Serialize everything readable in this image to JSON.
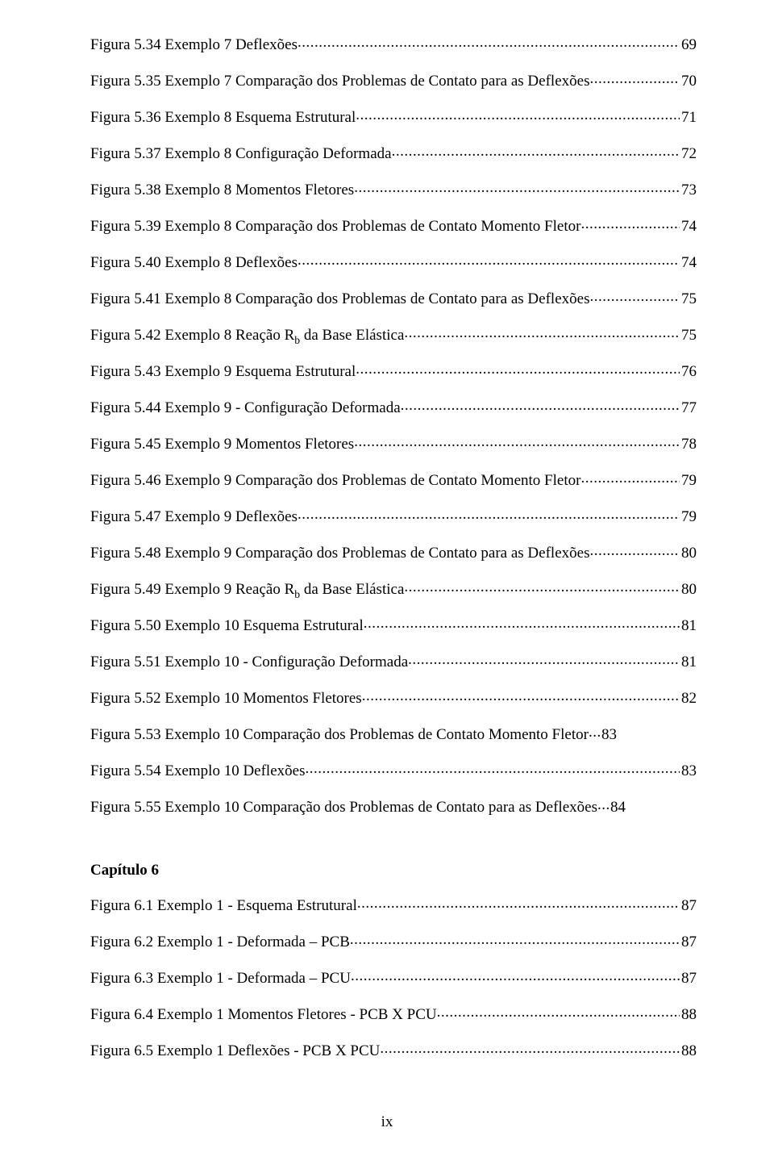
{
  "text_color": "#000000",
  "background_color": "#ffffff",
  "font_family": "Times New Roman",
  "base_fontsize_pt": 14,
  "chapter5_entries": [
    {
      "label": "Figura 5.34 Exemplo 7 Deflexões",
      "page": "69"
    },
    {
      "label": "Figura 5.35 Exemplo 7 Comparação dos Problemas de Contato para as Deflexões",
      "page": "70"
    },
    {
      "label": "Figura 5.36 Exemplo 8 Esquema Estrutural",
      "page": "71"
    },
    {
      "label": "Figura 5.37 Exemplo 8 Configuração Deformada",
      "page": "72"
    },
    {
      "label": "Figura 5.38 Exemplo 8 Momentos Fletores",
      "page": "73"
    },
    {
      "label": "Figura 5.39 Exemplo 8 Comparação dos Problemas de Contato Momento Fletor",
      "page": "74"
    },
    {
      "label": "Figura 5.40 Exemplo 8 Deflexões",
      "page": "74"
    },
    {
      "label": "Figura 5.41 Exemplo 8 Comparação dos Problemas de Contato para as Deflexões",
      "page": "75"
    },
    {
      "label": "Figura 5.42 Exemplo 8 Reação R",
      "label_sub": "b",
      "label_tail": " da Base Elástica",
      "page": "75"
    },
    {
      "label": "Figura 5.43 Exemplo 9 Esquema Estrutural",
      "page": "76"
    },
    {
      "label": "Figura 5.44 Exemplo 9 - Configuração Deformada",
      "page": "77"
    },
    {
      "label": "Figura 5.45 Exemplo 9 Momentos Fletores",
      "page": "78"
    },
    {
      "label": "Figura 5.46 Exemplo 9 Comparação dos Problemas de Contato Momento Fletor",
      "page": "79"
    },
    {
      "label": "Figura 5.47 Exemplo 9 Deflexões",
      "page": "79"
    },
    {
      "label": "Figura 5.48 Exemplo 9 Comparação dos Problemas de Contato para as Deflexões",
      "page": "80"
    },
    {
      "label": "Figura 5.49 Exemplo 9 Reação R",
      "label_sub": "b",
      "label_tail": " da Base Elástica",
      "page": "80"
    },
    {
      "label": "Figura 5.50 Exemplo 10  Esquema Estrutural",
      "page": "81"
    },
    {
      "label": "Figura 5.51 Exemplo 10 - Configuração Deformada",
      "page": "81"
    },
    {
      "label": "Figura 5.52 Exemplo 10 Momentos Fletores",
      "page": "82"
    },
    {
      "label": "Figura 5.53 Exemplo 10 Comparação dos Problemas de Contato Momento Fletor",
      "page": "83",
      "leader_short": true
    },
    {
      "label": "Figura 5.54 Exemplo 10 Deflexões",
      "page": "83"
    },
    {
      "label": "Figura 5.55 Exemplo 10 Comparação dos Problemas de Contato para as Deflexões",
      "page": "84",
      "leader_short": true
    }
  ],
  "chapter6_heading": "Capítulo 6",
  "chapter6_entries": [
    {
      "label": "Figura 6.1 Exemplo 1 - Esquema Estrutural",
      "page": "87"
    },
    {
      "label": "Figura 6.2 Exemplo 1 - Deformada – PCB",
      "page": "87"
    },
    {
      "label": "Figura 6.3 Exemplo 1 - Deformada – PCU",
      "page": "87"
    },
    {
      "label": "Figura 6.4 Exemplo 1 Momentos Fletores - PCB X PCU",
      "page": "88"
    },
    {
      "label": "Figura 6.5 Exemplo 1 Deflexões - PCB X PCU",
      "page": "88"
    }
  ],
  "page_number": "ix"
}
